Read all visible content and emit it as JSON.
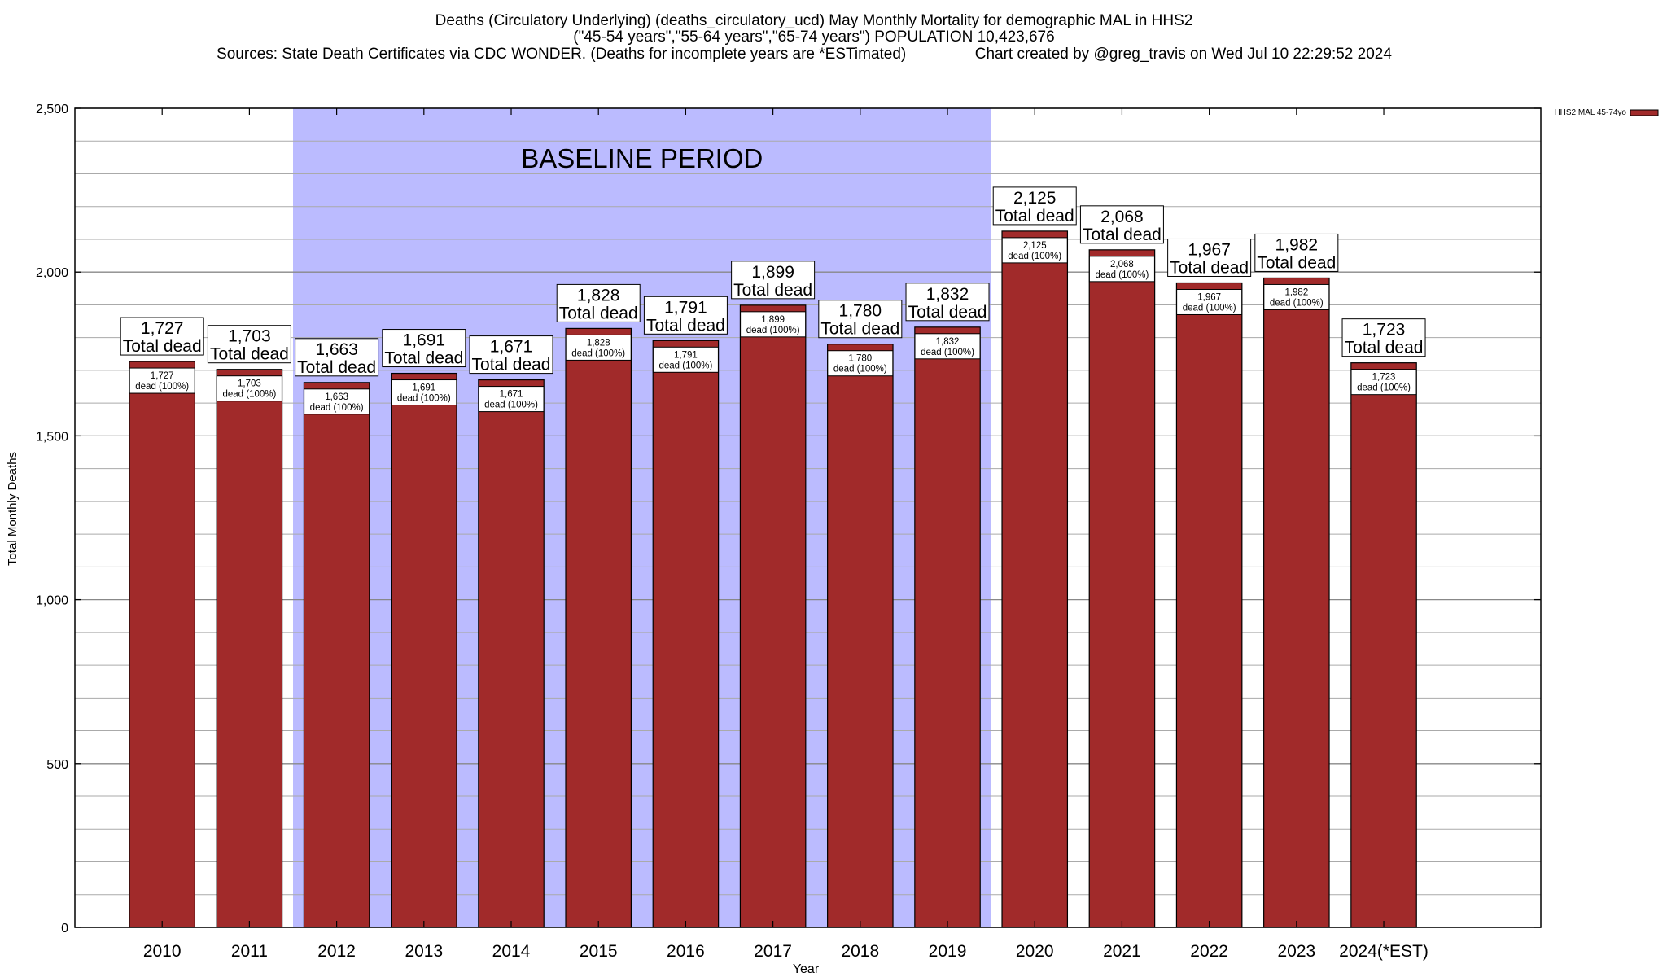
{
  "chart_data": {
    "type": "bar",
    "title_lines": [
      "Deaths (Circulatory Underlying) (deaths_circulatory_ucd) May Monthly Mortality for demographic MAL in HHS2",
      "(\"45-54 years\",\"55-64 years\",\"65-74 years\") POPULATION 10,423,676",
      "Sources: State Death Certificates via CDC WONDER. (Deaths for incomplete years are *ESTimated)                Chart created by @greg_travis on Wed Jul 10 22:29:52 2024"
    ],
    "xlabel": "Year",
    "ylabel": "Total Monthly Deaths",
    "ylim": [
      0,
      2500
    ],
    "yticks": [
      0,
      500,
      1000,
      1500,
      2000,
      2500
    ],
    "ytick_labels": [
      "0",
      "500",
      "1,000",
      "1,500",
      "2,000",
      "2,500"
    ],
    "minor_y_step": 100,
    "categories": [
      "2010",
      "2011",
      "2012",
      "2013",
      "2014",
      "2015",
      "2016",
      "2017",
      "2018",
      "2019",
      "2020",
      "2021",
      "2022",
      "2023",
      "2024(*EST)"
    ],
    "series": [
      {
        "name": "HHS2 MAL 45-74yo",
        "color": "#a12a2a",
        "values": [
          1727,
          1703,
          1663,
          1691,
          1671,
          1828,
          1791,
          1899,
          1780,
          1832,
          2125,
          2068,
          1967,
          1982,
          1723
        ]
      }
    ],
    "value_labels": [
      "1,727",
      "1,703",
      "1,663",
      "1,691",
      "1,671",
      "1,828",
      "1,791",
      "1,899",
      "1,780",
      "1,832",
      "2,125",
      "2,068",
      "1,967",
      "1,982",
      "1,723"
    ],
    "total_label_suffix": "Total dead",
    "inner_label_suffix": "dead (100%)",
    "baseline_period": {
      "label": "BASELINE PERIOD",
      "start_category": "2012",
      "end_category": "2019",
      "color": "#bbbbff"
    },
    "legend": {
      "position": "top-right",
      "entries": [
        "HHS2 MAL 45-74yo"
      ]
    },
    "grid": true
  }
}
